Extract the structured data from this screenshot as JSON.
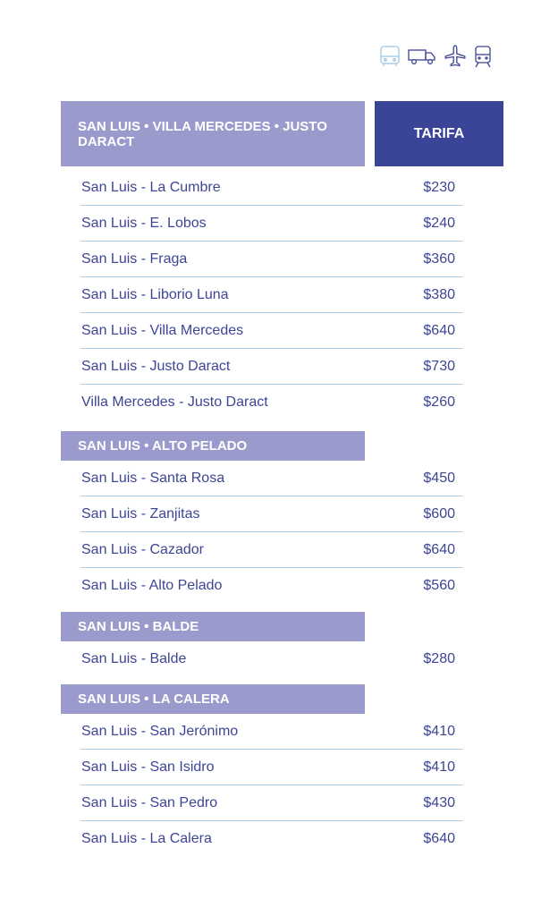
{
  "icons": [
    "bus-icon",
    "truck-icon",
    "airplane-icon",
    "train-icon"
  ],
  "colors": {
    "header": "#9b9acd",
    "tarifa": "#3a4597",
    "text": "#3d4595",
    "divider": "#a9cfe8"
  },
  "tarifa_label": "TARIFA",
  "sections": [
    {
      "title": "SAN LUIS • VILLA MERCEDES • JUSTO DARACT",
      "rows": [
        {
          "route": "San Luis - La Cumbre",
          "price": "$230"
        },
        {
          "route": "San Luis - E. Lobos",
          "price": "$240"
        },
        {
          "route": "San Luis - Fraga",
          "price": "$360"
        },
        {
          "route": "San Luis - Liborio Luna",
          "price": "$380"
        },
        {
          "route": "San Luis - Villa Mercedes",
          "price": "$640"
        },
        {
          "route": "San Luis - Justo Daract",
          "price": "$730"
        },
        {
          "route": "Villa Mercedes - Justo Daract",
          "price": "$260"
        }
      ]
    },
    {
      "title": "SAN LUIS • ALTO PELADO",
      "rows": [
        {
          "route": "San Luis - Santa Rosa",
          "price": "$450"
        },
        {
          "route": "San Luis - Zanjitas",
          "price": "$600"
        },
        {
          "route": "San Luis - Cazador",
          "price": "$640"
        },
        {
          "route": "San Luis - Alto Pelado",
          "price": "$560"
        }
      ]
    },
    {
      "title": "SAN LUIS • BALDE",
      "rows": [
        {
          "route": "San Luis - Balde",
          "price": "$280"
        }
      ]
    },
    {
      "title": "SAN LUIS • LA CALERA",
      "rows": [
        {
          "route": "San Luis - San Jerónimo",
          "price": "$410"
        },
        {
          "route": "San Luis - San Isidro",
          "price": "$410"
        },
        {
          "route": "San Luis - San Pedro",
          "price": "$430"
        },
        {
          "route": "San Luis - La Calera",
          "price": "$640"
        }
      ]
    }
  ]
}
